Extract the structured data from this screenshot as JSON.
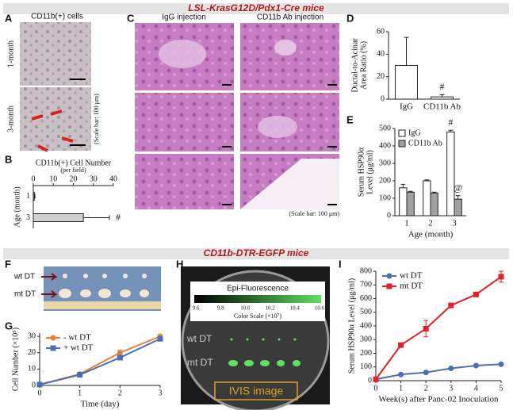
{
  "headers": [
    "LSL-KrasG12D/Pdx1-Cre mice",
    "CD11b-DTR-EGFP mice"
  ],
  "panel_a": {
    "letter": "A",
    "title": "CD11b(+) cells",
    "rows": [
      "1-month",
      "3-month"
    ],
    "note": "(Scale bar: 100 μm)"
  },
  "panel_c": {
    "letter": "C",
    "columns": [
      "IgG injection",
      "CD11b Ab injection"
    ],
    "note": "(Scale bar: 100 μm)"
  },
  "panel_f": {
    "letter": "F",
    "rows": [
      "wt DT",
      "mt DT"
    ]
  },
  "panel_h": {
    "letter": "H",
    "scale_title": "Epi-Fluorescence",
    "scale_ticks": [
      "9.6",
      "9.8",
      "10.0",
      "10.2",
      "10.4",
      "10.6"
    ],
    "scale_label": "Color Scale (×10⁷)",
    "rows": [
      "wt DT",
      "mt DT"
    ],
    "caption": "IVIS image"
  },
  "chart_data": [
    {
      "panel": "B",
      "type": "hbar",
      "title": "CD11b(+) Cell Number",
      "subtitle": "(per field)",
      "y_label": "Age (month)",
      "categories": [
        "1",
        "3"
      ],
      "values": [
        0.5,
        25
      ],
      "errors": [
        0.3,
        13
      ],
      "color": "#d0d0d0",
      "xlim": [
        0,
        40
      ],
      "xticks": [
        0,
        10,
        20,
        30,
        40
      ],
      "annotations": [
        "#"
      ]
    },
    {
      "panel": "D",
      "type": "bar",
      "y_label": [
        "Ductal-to-Acinar",
        "Area Ratio (%)"
      ],
      "categories": [
        "IgG",
        "CD11b Ab"
      ],
      "series": [
        {
          "color": "#ffffff",
          "values": [
            30,
            2
          ],
          "errors": [
            25,
            2
          ]
        }
      ],
      "ylim": [
        0,
        60
      ],
      "yticks": [
        0,
        20,
        40,
        60
      ],
      "annotations": [
        "#"
      ]
    },
    {
      "panel": "E",
      "type": "bar",
      "y_label": [
        "Serum HSP90α",
        "Level (μg/ml)"
      ],
      "x_label": "Age (month)",
      "categories": [
        "1",
        "2",
        "3"
      ],
      "series": [
        {
          "name": "IgG",
          "color": "#ffffff",
          "values": [
            160,
            200,
            480
          ],
          "errors": [
            20,
            5,
            10
          ]
        },
        {
          "name": "CD11b Ab",
          "color": "#a0a0a0",
          "values": [
            135,
            130,
            95
          ],
          "errors": [
            5,
            5,
            20
          ]
        }
      ],
      "ylim": [
        0,
        500
      ],
      "yticks": [
        0,
        100,
        200,
        300,
        400,
        500
      ],
      "annotations": [
        "#",
        "@"
      ]
    },
    {
      "panel": "G",
      "type": "line",
      "y_label": "Cell Number (×10⁵)",
      "x_label": "Time (day)",
      "x": [
        0,
        1,
        2,
        3
      ],
      "series": [
        {
          "name": "- wt DT",
          "color": "#e8803a",
          "marker": "circle",
          "values": [
            0.5,
            7,
            20,
            30
          ],
          "errors": [
            0,
            0.5,
            1.5,
            1
          ]
        },
        {
          "name": "+ wt DT",
          "color": "#4a6fb5",
          "marker": "square",
          "values": [
            0.5,
            6.5,
            17,
            28.5
          ],
          "errors": [
            0,
            0.5,
            1,
            1
          ]
        }
      ],
      "xlim": [
        0,
        3
      ],
      "xticks": [
        0,
        1,
        2,
        3
      ],
      "ylim": [
        0,
        32
      ],
      "yticks": [
        0,
        10,
        20,
        30
      ]
    },
    {
      "panel": "I",
      "type": "line",
      "y_label": "Serum HSP90α Level (μg/ml)",
      "x_label": "Week(s) after Panc-02 Inoculation",
      "x": [
        0,
        1,
        2,
        3,
        4,
        5
      ],
      "series": [
        {
          "name": "wt DT",
          "color": "#4a6fb5",
          "marker": "circle",
          "values": [
            10,
            45,
            60,
            90,
            110,
            120
          ],
          "errors": [
            0,
            5,
            8,
            8,
            8,
            8
          ]
        },
        {
          "name": "mt DT",
          "color": "#e0202a",
          "marker": "square",
          "values": [
            10,
            260,
            380,
            550,
            630,
            760
          ],
          "errors": [
            0,
            15,
            60,
            15,
            15,
            40
          ]
        }
      ],
      "xlim": [
        0,
        5
      ],
      "xticks": [
        0,
        1,
        2,
        3,
        4,
        5
      ],
      "ylim": [
        0,
        800
      ],
      "yticks": [
        0,
        100,
        200,
        300,
        400,
        500,
        600,
        700,
        800
      ]
    }
  ]
}
